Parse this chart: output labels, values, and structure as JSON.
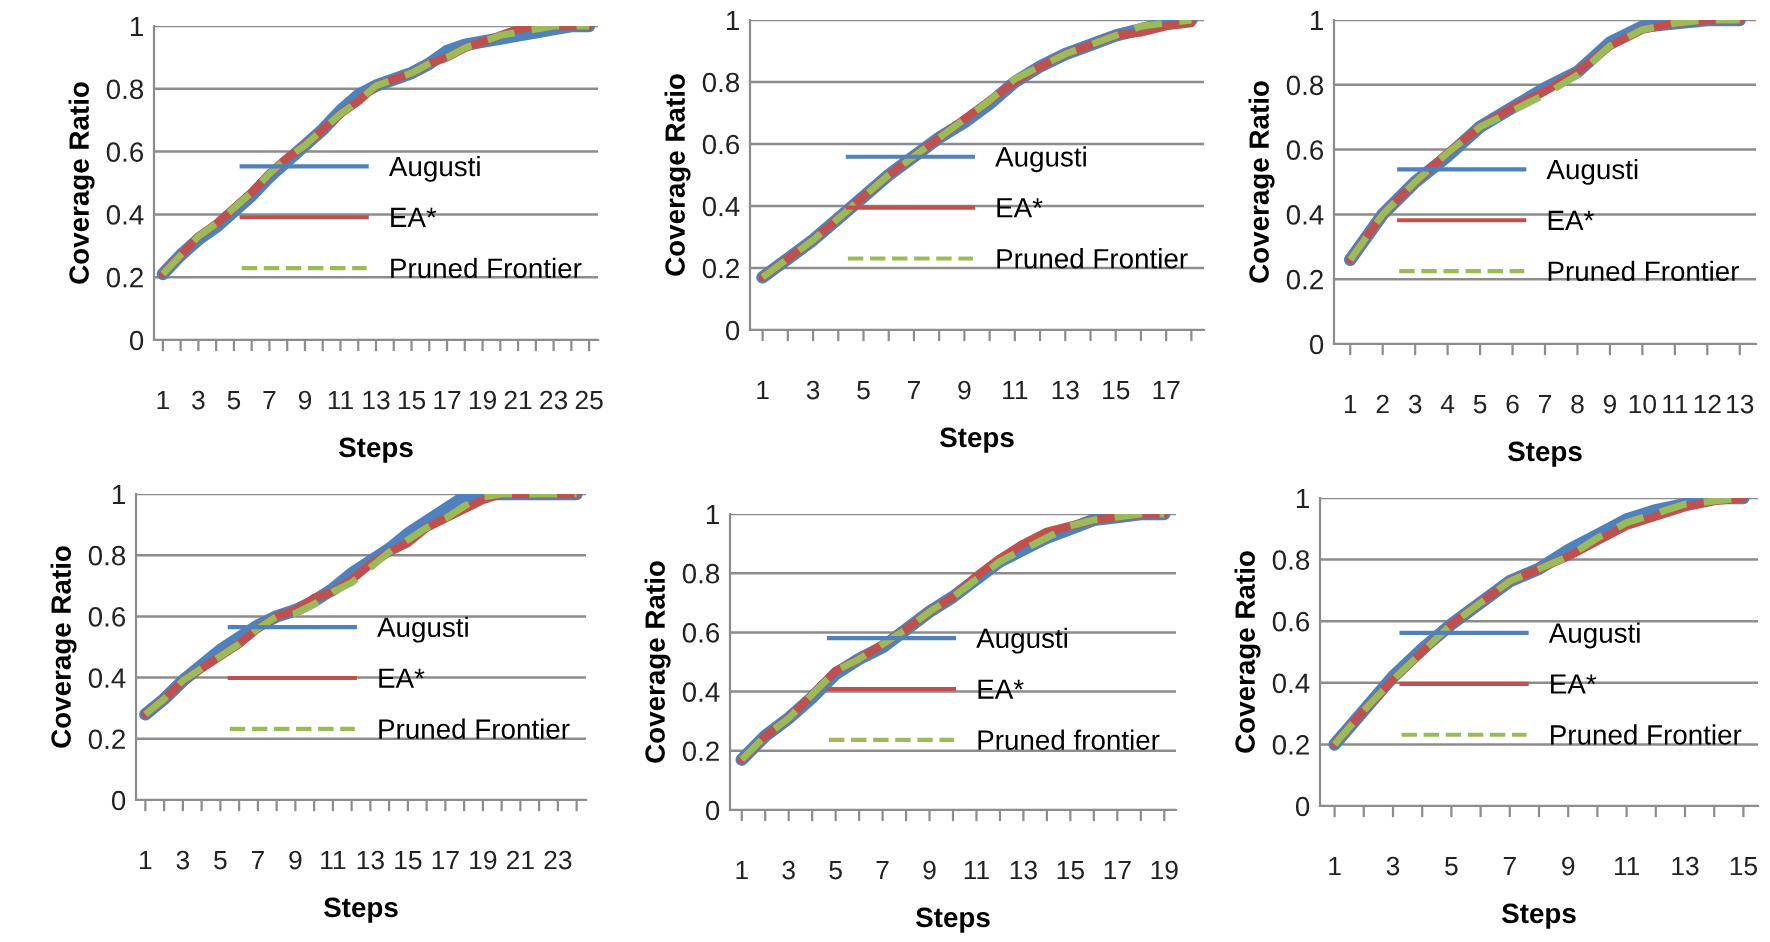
{
  "chart_data": [
    {
      "type": "line",
      "xlabel": "Steps",
      "ylabel": "Coverage Ratio",
      "ylim": [
        0,
        1
      ],
      "yticks": [
        0,
        0.2,
        0.4,
        0.6,
        0.8,
        1
      ],
      "grid": "y",
      "legend": "lower right",
      "marker": "none",
      "categories": [
        "1",
        null,
        "3",
        null,
        "5",
        null,
        "7",
        null,
        "9",
        null,
        "11",
        null,
        "13",
        null,
        "15",
        null,
        "17",
        null,
        "19",
        null,
        "21",
        null,
        "23",
        null,
        "25"
      ],
      "series": [
        {
          "name": "Augusti",
          "color": "#4f81bd",
          "line_style": "solid",
          "values": [
            0.21,
            0.27,
            0.32,
            0.36,
            0.41,
            0.46,
            0.52,
            0.57,
            0.62,
            0.67,
            0.73,
            0.78,
            0.81,
            0.83,
            0.85,
            0.88,
            0.92,
            0.94,
            0.95,
            0.96,
            0.97,
            0.98,
            0.99,
            1,
            1
          ]
        },
        {
          "name": "EA*",
          "color": "#c0504d",
          "line_style": "solid",
          "values": [
            0.21,
            0.27,
            0.33,
            0.37,
            0.42,
            0.47,
            0.53,
            0.58,
            0.62,
            0.67,
            0.72,
            0.76,
            0.81,
            0.83,
            0.85,
            0.88,
            0.9,
            0.93,
            0.95,
            0.97,
            0.99,
            1,
            1,
            1,
            1
          ]
        },
        {
          "name": "Pruned Frontier",
          "color": "#9bbb59",
          "line_style": "dashed",
          "values": [
            0.21,
            0.27,
            0.33,
            0.37,
            0.42,
            0.47,
            0.53,
            0.58,
            0.62,
            0.67,
            0.72,
            0.76,
            0.81,
            0.83,
            0.85,
            0.88,
            0.9,
            0.93,
            0.95,
            0.97,
            0.98,
            0.99,
            1,
            1,
            1
          ]
        }
      ]
    },
    {
      "type": "line",
      "xlabel": "Steps",
      "ylabel": "Coverage Ratio",
      "ylim": [
        0,
        1
      ],
      "yticks": [
        0,
        0.2,
        0.4,
        0.6,
        0.8,
        1
      ],
      "grid": "y",
      "legend": "lower right",
      "marker": "none",
      "categories": [
        "1",
        null,
        "3",
        null,
        "5",
        null,
        "7",
        null,
        "9",
        null,
        "11",
        null,
        "13",
        null,
        "15",
        null,
        "17",
        null
      ],
      "series": [
        {
          "name": "Augusti",
          "color": "#4f81bd",
          "line_style": "solid",
          "values": [
            0.17,
            0.23,
            0.29,
            0.36,
            0.43,
            0.5,
            0.56,
            0.62,
            0.67,
            0.73,
            0.8,
            0.85,
            0.89,
            0.92,
            0.95,
            0.97,
            0.99,
            1
          ]
        },
        {
          "name": "EA*",
          "color": "#c0504d",
          "line_style": "solid",
          "values": [
            0.17,
            0.23,
            0.29,
            0.36,
            0.43,
            0.5,
            0.56,
            0.62,
            0.68,
            0.74,
            0.8,
            0.85,
            0.89,
            0.92,
            0.95,
            0.96,
            0.98,
            0.99
          ]
        },
        {
          "name": "Pruned Frontier",
          "color": "#9bbb59",
          "line_style": "dashed",
          "values": [
            0.17,
            0.23,
            0.29,
            0.36,
            0.43,
            0.5,
            0.56,
            0.62,
            0.68,
            0.74,
            0.81,
            0.85,
            0.89,
            0.92,
            0.95,
            0.98,
            0.99,
            1
          ]
        }
      ]
    },
    {
      "type": "line",
      "xlabel": "Steps",
      "ylabel": "Coverage Ratio",
      "ylim": [
        0,
        1
      ],
      "yticks": [
        0,
        0.2,
        0.4,
        0.6,
        0.8,
        1
      ],
      "grid": "y",
      "legend": "lower right",
      "marker": "none",
      "categories": [
        "1",
        "2",
        "3",
        "4",
        "5",
        "6",
        "7",
        "8",
        "9",
        "10",
        "11",
        "12",
        "13"
      ],
      "series": [
        {
          "name": "Augusti",
          "color": "#4f81bd",
          "line_style": "solid",
          "values": [
            0.26,
            0.4,
            0.5,
            0.58,
            0.67,
            0.73,
            0.79,
            0.84,
            0.93,
            0.98,
            0.99,
            1,
            1
          ]
        },
        {
          "name": "EA*",
          "color": "#c0504d",
          "line_style": "solid",
          "values": [
            0.26,
            0.4,
            0.5,
            0.59,
            0.67,
            0.73,
            0.78,
            0.84,
            0.92,
            0.97,
            0.99,
            1,
            1
          ]
        },
        {
          "name": "Pruned Frontier",
          "color": "#9bbb59",
          "line_style": "dashed",
          "values": [
            0.26,
            0.4,
            0.5,
            0.59,
            0.67,
            0.72,
            0.77,
            0.83,
            0.92,
            0.97,
            0.99,
            1,
            1
          ]
        }
      ]
    },
    {
      "type": "line",
      "xlabel": "Steps",
      "ylabel": "Coverage Ratio",
      "ylim": [
        0,
        1
      ],
      "yticks": [
        0,
        0.2,
        0.4,
        0.6,
        0.8,
        1
      ],
      "grid": "y",
      "legend": "lower right",
      "marker": "none",
      "categories": [
        "1",
        null,
        "3",
        null,
        "5",
        null,
        "7",
        null,
        "9",
        null,
        "11",
        null,
        "13",
        null,
        "15",
        null,
        "17",
        null,
        "19",
        null,
        "21",
        null,
        "23",
        null
      ],
      "series": [
        {
          "name": "Augusti",
          "color": "#4f81bd",
          "line_style": "solid",
          "values": [
            0.28,
            0.33,
            0.39,
            0.44,
            0.49,
            0.53,
            0.57,
            0.6,
            0.62,
            0.65,
            0.69,
            0.74,
            0.78,
            0.82,
            0.87,
            0.91,
            0.95,
            0.99,
            1,
            1,
            1,
            1,
            1,
            1
          ]
        },
        {
          "name": "EA*",
          "color": "#c0504d",
          "line_style": "solid",
          "values": [
            0.28,
            0.33,
            0.39,
            0.43,
            0.47,
            0.51,
            0.56,
            0.6,
            0.62,
            0.66,
            0.68,
            0.72,
            0.77,
            0.81,
            0.84,
            0.89,
            0.92,
            0.95,
            0.98,
            1,
            1,
            1,
            1,
            1
          ]
        },
        {
          "name": "Pruned Frontier",
          "color": "#9bbb59",
          "line_style": "dashed",
          "values": [
            0.28,
            0.33,
            0.39,
            0.43,
            0.47,
            0.51,
            0.56,
            0.6,
            0.61,
            0.64,
            0.68,
            0.71,
            0.76,
            0.81,
            0.85,
            0.89,
            0.92,
            0.96,
            0.99,
            1,
            1,
            1,
            1,
            1
          ]
        }
      ]
    },
    {
      "type": "line",
      "xlabel": "Steps",
      "ylabel": "Coverage Ratio",
      "ylim": [
        0,
        1
      ],
      "yticks": [
        0,
        0.2,
        0.4,
        0.6,
        0.8,
        1
      ],
      "grid": "y",
      "legend": "lower right",
      "marker": "none",
      "categories": [
        "1",
        null,
        "3",
        null,
        "5",
        null,
        "7",
        null,
        "9",
        null,
        "11",
        null,
        "13",
        null,
        "15",
        null,
        "17",
        null,
        "19"
      ],
      "series": [
        {
          "name": "Augusti",
          "color": "#4f81bd",
          "line_style": "solid",
          "values": [
            0.17,
            0.25,
            0.31,
            0.38,
            0.46,
            0.51,
            0.55,
            0.61,
            0.67,
            0.72,
            0.78,
            0.84,
            0.88,
            0.92,
            0.95,
            0.98,
            0.99,
            1,
            1
          ]
        },
        {
          "name": "EA*",
          "color": "#c0504d",
          "line_style": "solid",
          "values": [
            0.17,
            0.25,
            0.31,
            0.39,
            0.47,
            0.51,
            0.56,
            0.61,
            0.67,
            0.72,
            0.79,
            0.85,
            0.9,
            0.94,
            0.96,
            0.98,
            0.99,
            1,
            1
          ]
        },
        {
          "name": "Pruned frontier",
          "color": "#9bbb59",
          "line_style": "dashed",
          "values": [
            0.17,
            0.25,
            0.31,
            0.39,
            0.47,
            0.51,
            0.56,
            0.61,
            0.67,
            0.72,
            0.78,
            0.84,
            0.88,
            0.92,
            0.96,
            0.98,
            0.99,
            1,
            1
          ]
        }
      ]
    },
    {
      "type": "line",
      "xlabel": "Steps",
      "ylabel": "Coverage Ratio",
      "ylim": [
        0,
        1
      ],
      "yticks": [
        0,
        0.2,
        0.4,
        0.6,
        0.8,
        1
      ],
      "grid": "y",
      "legend": "lower right",
      "marker": "none",
      "categories": [
        "1",
        null,
        "3",
        null,
        "5",
        null,
        "7",
        null,
        "9",
        null,
        "11",
        null,
        "13",
        null,
        "15"
      ],
      "series": [
        {
          "name": "Augusti",
          "color": "#4f81bd",
          "line_style": "solid",
          "values": [
            0.2,
            0.31,
            0.42,
            0.51,
            0.59,
            0.66,
            0.73,
            0.77,
            0.83,
            0.88,
            0.93,
            0.96,
            0.98,
            1,
            1
          ]
        },
        {
          "name": "EA*",
          "color": "#c0504d",
          "line_style": "solid",
          "values": [
            0.2,
            0.31,
            0.41,
            0.5,
            0.59,
            0.66,
            0.73,
            0.77,
            0.81,
            0.86,
            0.91,
            0.94,
            0.97,
            0.99,
            1
          ]
        },
        {
          "name": "Pruned Frontier",
          "color": "#9bbb59",
          "line_style": "dashed",
          "values": [
            0.2,
            0.31,
            0.41,
            0.5,
            0.59,
            0.66,
            0.73,
            0.77,
            0.81,
            0.87,
            0.92,
            0.95,
            0.98,
            0.99,
            1
          ]
        }
      ]
    }
  ]
}
